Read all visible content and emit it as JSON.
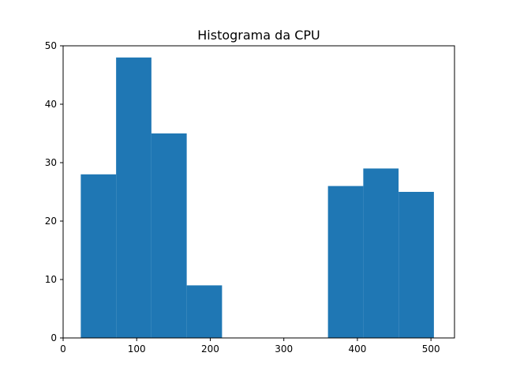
{
  "chart_data": {
    "type": "bar",
    "title": "Histograma da CPU",
    "xlabel": "",
    "ylabel": "",
    "xlim": [
      0,
      532
    ],
    "ylim": [
      0,
      50
    ],
    "bar_color": "#1f77b4",
    "bins": [
      {
        "x0": 24,
        "x1": 72,
        "count": 28
      },
      {
        "x0": 72,
        "x1": 120,
        "count": 48
      },
      {
        "x0": 120,
        "x1": 168,
        "count": 35
      },
      {
        "x0": 168,
        "x1": 216,
        "count": 9
      },
      {
        "x0": 216,
        "x1": 264,
        "count": 0
      },
      {
        "x0": 264,
        "x1": 312,
        "count": 0
      },
      {
        "x0": 312,
        "x1": 360,
        "count": 0
      },
      {
        "x0": 360,
        "x1": 408,
        "count": 26
      },
      {
        "x0": 408,
        "x1": 456,
        "count": 29
      },
      {
        "x0": 456,
        "x1": 504,
        "count": 25
      }
    ],
    "x_ticks": [
      0,
      100,
      200,
      300,
      400,
      500
    ],
    "x_tick_labels": [
      "0",
      "100",
      "200",
      "300",
      "400",
      "500"
    ],
    "y_ticks": [
      0,
      10,
      20,
      30,
      40,
      50
    ],
    "y_tick_labels": [
      "0",
      "10",
      "20",
      "30",
      "40",
      "50"
    ],
    "grid": false,
    "legend": "none"
  }
}
